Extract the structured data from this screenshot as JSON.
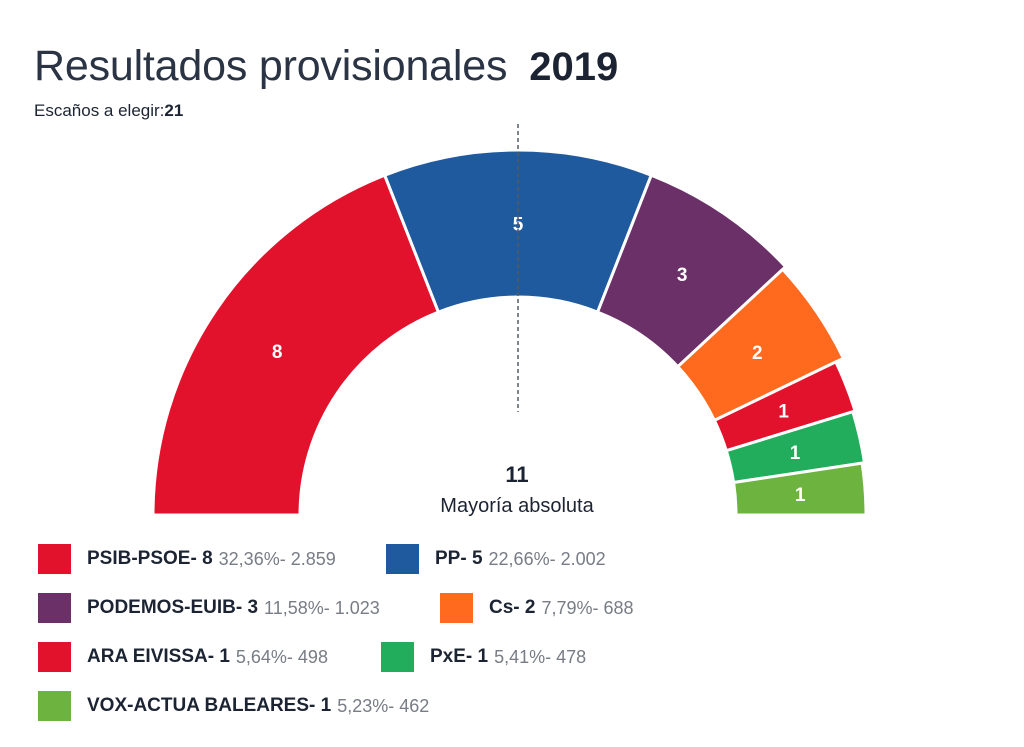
{
  "header": {
    "title": "Resultados provisionales",
    "year": "2019",
    "seats_label": "Escaños a elegir:",
    "seats_total": "21"
  },
  "majority": {
    "number": "11",
    "label": "Mayoría absoluta"
  },
  "legend": [
    {
      "party": "PSIB-PSOE- 8",
      "detail": "32,36%- 2.859"
    },
    {
      "party": "PP- 5",
      "detail": "22,66%- 2.002"
    },
    {
      "party": "PODEMOS-EUIB- 3",
      "detail": "11,58%- 1.023"
    },
    {
      "party": "Cs- 2",
      "detail": "7,79%- 688"
    },
    {
      "party": "ARA EIVISSA- 1",
      "detail": "5,64%- 498"
    },
    {
      "party": "PxE- 1",
      "detail": "5,41%- 478"
    },
    {
      "party": "VOX-ACTUA BALEARES- 1",
      "detail": "5,23%- 462"
    }
  ],
  "chart_data": {
    "type": "pie",
    "subtype": "parliament-semicircle",
    "total_seats": 21,
    "majority": 11,
    "majority_marker": "dashed vertical line",
    "categories": [
      "PSIB-PSOE",
      "PP",
      "PODEMOS-EUIB",
      "Cs",
      "ARA EIVISSA",
      "PxE",
      "VOX-ACTUA BALEARES"
    ],
    "values": [
      8,
      5,
      3,
      2,
      1,
      1,
      1
    ],
    "vote_percent": [
      32.36,
      22.66,
      11.58,
      7.79,
      5.64,
      5.41,
      5.23
    ],
    "votes": [
      2859,
      2002,
      1023,
      688,
      498,
      478,
      462
    ],
    "colors": [
      "#e3122c",
      "#1f5a9e",
      "#6a3067",
      "#ff6a1f",
      "#e3122c",
      "#21ad5b",
      "#6cb33f"
    ]
  }
}
